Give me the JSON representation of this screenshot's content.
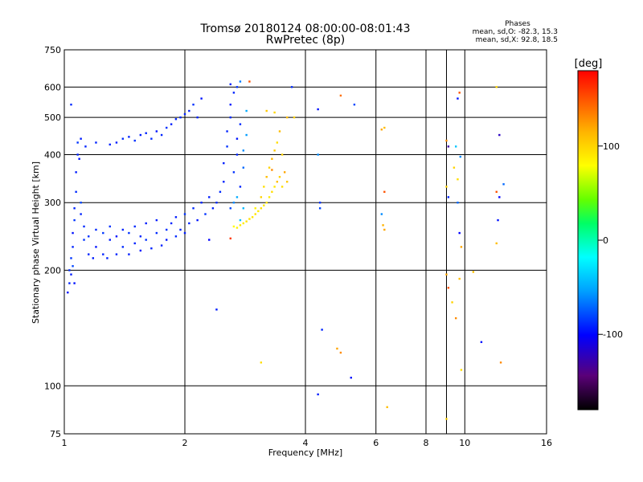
{
  "chart_data": {
    "type": "scatter",
    "title": "Tromsø 20180124 08:00:00-08:01:43",
    "subtitle": "RwPretec (8p)",
    "xlabel": "Frequency [MHz]",
    "ylabel": "Stationary phase Virtual Height [km]",
    "x_scale": "log",
    "y_scale": "log",
    "xlim": [
      1,
      16
    ],
    "ylim": [
      75,
      750
    ],
    "x_ticks": [
      1,
      2,
      4,
      6,
      8,
      10,
      16
    ],
    "y_ticks": [
      75,
      100,
      200,
      300,
      400,
      500,
      600,
      750
    ],
    "grid": true,
    "phases_stats": {
      "title": "Phases",
      "line_o": "mean, sd,O: -82.3, 15.3",
      "line_x": "mean, sd,X:  92.8, 18.5"
    },
    "colorbar": {
      "label": "[deg]",
      "range": [
        -180,
        180
      ],
      "ticks": [
        100,
        0,
        -100
      ],
      "colors": [
        "#000000",
        "#5a0078",
        "#0000ff",
        "#00a0ff",
        "#00ffff",
        "#00ff64",
        "#64ff00",
        "#ffff00",
        "#ffb400",
        "#ff6400",
        "#ff0000"
      ]
    },
    "series": [
      {
        "description_of_points": "Each point: x frequency [MHz], y virtual height [km], phase [deg]",
        "points": [
          [
            1.02,
            175,
            -95
          ],
          [
            1.03,
            185,
            -90
          ],
          [
            1.03,
            200,
            -88
          ],
          [
            1.04,
            195,
            -92
          ],
          [
            1.04,
            215,
            -85
          ],
          [
            1.05,
            230,
            -90
          ],
          [
            1.05,
            250,
            -95
          ],
          [
            1.06,
            270,
            -85
          ],
          [
            1.06,
            290,
            -90
          ],
          [
            1.07,
            320,
            -88
          ],
          [
            1.07,
            360,
            -92
          ],
          [
            1.08,
            400,
            -90
          ],
          [
            1.08,
            430,
            -85
          ],
          [
            1.09,
            390,
            -95
          ],
          [
            1.1,
            300,
            -80
          ],
          [
            1.1,
            280,
            -90
          ],
          [
            1.1,
            440,
            -92
          ],
          [
            1.12,
            260,
            -88
          ],
          [
            1.12,
            240,
            -85
          ],
          [
            1.13,
            420,
            -90
          ],
          [
            1.04,
            540,
            -88
          ],
          [
            1.05,
            205,
            -80
          ],
          [
            1.06,
            185,
            -95
          ],
          [
            1.15,
            220,
            -90
          ],
          [
            1.15,
            245,
            -86
          ],
          [
            1.18,
            215,
            -92
          ],
          [
            1.2,
            255,
            -88
          ],
          [
            1.2,
            230,
            -95
          ],
          [
            1.25,
            220,
            -90
          ],
          [
            1.25,
            250,
            -84
          ],
          [
            1.28,
            215,
            -90
          ],
          [
            1.3,
            240,
            -92
          ],
          [
            1.3,
            260,
            -86
          ],
          [
            1.35,
            220,
            -90
          ],
          [
            1.35,
            245,
            -95
          ],
          [
            1.4,
            230,
            -88
          ],
          [
            1.4,
            255,
            -90
          ],
          [
            1.45,
            220,
            -92
          ],
          [
            1.45,
            250,
            -86
          ],
          [
            1.5,
            235,
            -90
          ],
          [
            1.5,
            260,
            -88
          ],
          [
            1.55,
            225,
            -94
          ],
          [
            1.55,
            245,
            -90
          ],
          [
            1.6,
            240,
            -86
          ],
          [
            1.6,
            265,
            -92
          ],
          [
            1.65,
            228,
            -90
          ],
          [
            1.7,
            250,
            -88
          ],
          [
            1.7,
            270,
            -92
          ],
          [
            1.75,
            232,
            -90
          ],
          [
            1.8,
            255,
            -86
          ],
          [
            1.8,
            240,
            -94
          ],
          [
            1.85,
            265,
            -90
          ],
          [
            1.9,
            245,
            -88
          ],
          [
            1.9,
            275,
            -92
          ],
          [
            1.95,
            255,
            -90
          ],
          [
            2.0,
            280,
            -86
          ],
          [
            2.0,
            250,
            -92
          ],
          [
            2.05,
            265,
            -90
          ],
          [
            2.1,
            290,
            -88
          ],
          [
            2.15,
            270,
            -94
          ],
          [
            2.2,
            300,
            -90
          ],
          [
            2.25,
            280,
            -86
          ],
          [
            2.3,
            310,
            -92
          ],
          [
            2.35,
            290,
            -90
          ],
          [
            2.4,
            300,
            -88
          ],
          [
            1.3,
            425,
            -90
          ],
          [
            1.35,
            430,
            -92
          ],
          [
            1.4,
            440,
            -88
          ],
          [
            1.45,
            445,
            -90
          ],
          [
            1.5,
            435,
            -86
          ],
          [
            1.55,
            450,
            -92
          ],
          [
            1.6,
            455,
            -90
          ],
          [
            1.65,
            440,
            -88
          ],
          [
            1.7,
            460,
            -94
          ],
          [
            1.75,
            450,
            -90
          ],
          [
            1.8,
            470,
            -86
          ],
          [
            1.85,
            480,
            -92
          ],
          [
            1.9,
            495,
            -90
          ],
          [
            1.95,
            500,
            -88
          ],
          [
            2.0,
            510,
            -90
          ],
          [
            2.05,
            520,
            -92
          ],
          [
            2.1,
            540,
            -86
          ],
          [
            2.15,
            500,
            -90
          ],
          [
            2.2,
            560,
            -94
          ],
          [
            1.2,
            430,
            -90
          ],
          [
            2.45,
            320,
            -88
          ],
          [
            2.5,
            340,
            -90
          ],
          [
            2.5,
            380,
            -92
          ],
          [
            2.55,
            420,
            -86
          ],
          [
            2.55,
            460,
            -90
          ],
          [
            2.6,
            500,
            -88
          ],
          [
            2.6,
            540,
            -92
          ],
          [
            2.65,
            580,
            -90
          ],
          [
            2.65,
            360,
            -86
          ],
          [
            2.7,
            400,
            -90
          ],
          [
            2.7,
            440,
            -94
          ],
          [
            2.75,
            480,
            -88
          ],
          [
            2.75,
            330,
            -90
          ],
          [
            2.8,
            370,
            -70
          ],
          [
            2.8,
            410,
            -60
          ],
          [
            2.85,
            450,
            -55
          ],
          [
            2.85,
            520,
            -50
          ],
          [
            2.75,
            620,
            -65
          ],
          [
            2.7,
            600,
            -85
          ],
          [
            2.6,
            610,
            -90
          ],
          [
            2.6,
            290,
            -80
          ],
          [
            2.65,
            300,
            -60
          ],
          [
            2.7,
            310,
            -50
          ],
          [
            2.75,
            270,
            -40
          ],
          [
            2.8,
            290,
            -45
          ],
          [
            2.65,
            260,
            80
          ],
          [
            2.7,
            258,
            85
          ],
          [
            2.75,
            262,
            90
          ],
          [
            2.8,
            265,
            88
          ],
          [
            2.85,
            268,
            92
          ],
          [
            2.9,
            272,
            95
          ],
          [
            2.95,
            275,
            90
          ],
          [
            3.0,
            280,
            92
          ],
          [
            3.05,
            285,
            88
          ],
          [
            3.1,
            290,
            95
          ],
          [
            3.15,
            295,
            90
          ],
          [
            3.2,
            300,
            92
          ],
          [
            3.25,
            310,
            88
          ],
          [
            3.3,
            320,
            95
          ],
          [
            3.35,
            330,
            90
          ],
          [
            3.4,
            340,
            110
          ],
          [
            3.45,
            350,
            100
          ],
          [
            3.5,
            330,
            95
          ],
          [
            3.55,
            360,
            120
          ],
          [
            3.6,
            340,
            105
          ],
          [
            3.1,
            310,
            100
          ],
          [
            3.15,
            330,
            95
          ],
          [
            3.2,
            350,
            110
          ],
          [
            3.25,
            370,
            100
          ],
          [
            3.3,
            390,
            115
          ],
          [
            3.35,
            410,
            105
          ],
          [
            3.4,
            430,
            95
          ],
          [
            3.45,
            460,
            110
          ],
          [
            3.5,
            400,
            100
          ],
          [
            3.3,
            365,
            130
          ],
          [
            3.2,
            520,
            105
          ],
          [
            3.35,
            515,
            98
          ],
          [
            3.6,
            500,
            110
          ],
          [
            2.9,
            620,
            150
          ],
          [
            3.0,
            290,
            85
          ],
          [
            3.7,
            600,
            -88
          ],
          [
            3.75,
            500,
            100
          ],
          [
            4.3,
            525,
            -95
          ],
          [
            4.3,
            400,
            -60
          ],
          [
            4.35,
            300,
            -85
          ],
          [
            4.35,
            290,
            -80
          ],
          [
            4.9,
            570,
            140
          ],
          [
            5.3,
            540,
            -80
          ],
          [
            6.2,
            465,
            120
          ],
          [
            6.3,
            470,
            110
          ],
          [
            6.3,
            320,
            150
          ],
          [
            6.2,
            280,
            -60
          ],
          [
            6.25,
            262,
            115
          ],
          [
            6.3,
            255,
            120
          ],
          [
            4.4,
            140,
            -90
          ],
          [
            4.3,
            95,
            -92
          ],
          [
            4.8,
            125,
            120
          ],
          [
            4.9,
            122,
            130
          ],
          [
            5.2,
            105,
            -95
          ],
          [
            6.4,
            88,
            110
          ],
          [
            3.1,
            115,
            95
          ],
          [
            2.4,
            158,
            -92
          ],
          [
            2.6,
            242,
            160
          ],
          [
            2.3,
            240,
            -100
          ],
          [
            9.0,
            435,
            130
          ],
          [
            9.1,
            420,
            -130
          ],
          [
            9.5,
            420,
            -40
          ],
          [
            9.7,
            580,
            150
          ],
          [
            9.6,
            560,
            -95
          ],
          [
            9.0,
            330,
            100
          ],
          [
            9.1,
            310,
            -90
          ],
          [
            9.6,
            300,
            -70
          ],
          [
            9.7,
            250,
            -100
          ],
          [
            9.8,
            230,
            120
          ],
          [
            9.7,
            190,
            110
          ],
          [
            9.0,
            195,
            120
          ],
          [
            9.1,
            180,
            150
          ],
          [
            9.3,
            165,
            100
          ],
          [
            9.5,
            150,
            130
          ],
          [
            10.5,
            198,
            110
          ],
          [
            11.0,
            130,
            -95
          ],
          [
            9.8,
            110,
            95
          ],
          [
            9.0,
            82,
            100
          ],
          [
            12.0,
            600,
            100
          ],
          [
            12.2,
            450,
            -120
          ],
          [
            12.0,
            320,
            150
          ],
          [
            12.2,
            310,
            -100
          ],
          [
            12.5,
            335,
            -70
          ],
          [
            12.1,
            270,
            -95
          ],
          [
            12.0,
            235,
            110
          ],
          [
            12.3,
            115,
            130
          ],
          [
            9.6,
            345,
            95
          ],
          [
            9.4,
            370,
            100
          ],
          [
            9.75,
            395,
            -60
          ]
        ]
      }
    ]
  }
}
